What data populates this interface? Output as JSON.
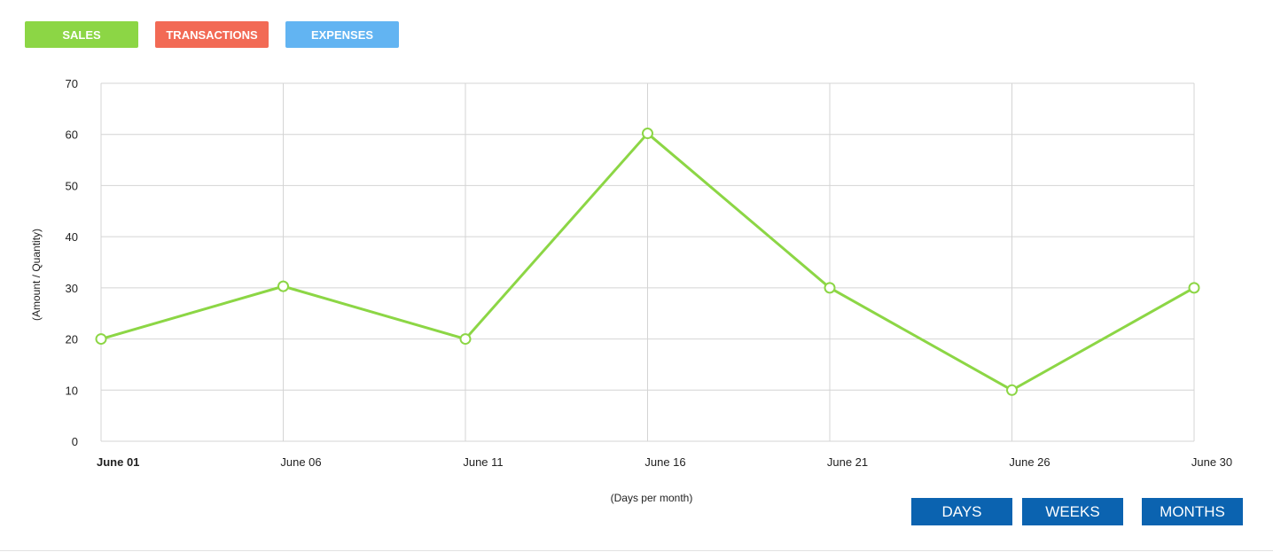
{
  "tabs": [
    {
      "label": "SALES",
      "color": "#8cd645"
    },
    {
      "label": "TRANSACTIONS",
      "color": "#f26a55"
    },
    {
      "label": "EXPENSES",
      "color": "#62b4f2"
    }
  ],
  "range_buttons": {
    "days": "DAYS",
    "weeks": "WEEKS",
    "months": "MONTHS",
    "color": "#0b63b0"
  },
  "chart_data": {
    "type": "line",
    "title": "",
    "xlabel": "(Days per month)",
    "ylabel": "(Amount / Quantity)",
    "ylim": [
      0,
      70
    ],
    "yticks": [
      "0",
      "10",
      "20",
      "30",
      "40",
      "50",
      "60",
      "70"
    ],
    "categories": [
      "June 01",
      "June 06",
      "June 11",
      "June 16",
      "June 21",
      "June 26",
      "June 30"
    ],
    "grid": true,
    "series": [
      {
        "values": [
          20,
          30.3,
          20,
          60.2,
          30,
          10,
          30
        ],
        "color": "#8cd645"
      }
    ]
  }
}
